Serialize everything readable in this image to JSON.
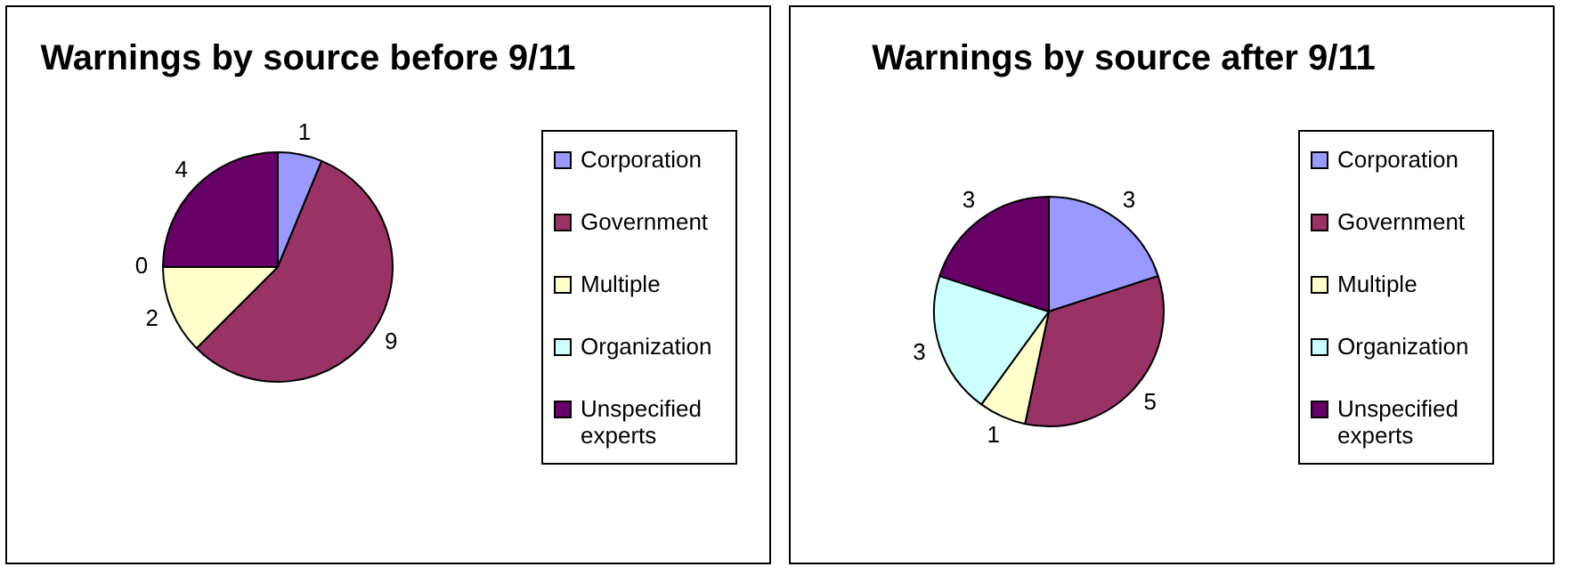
{
  "chart_data": [
    {
      "type": "pie",
      "title": "Warnings by source before 9/11",
      "categories": [
        "Corporation",
        "Government",
        "Multiple",
        "Organization",
        "Unspecified experts"
      ],
      "values": [
        1,
        9,
        2,
        0,
        4
      ],
      "colors": [
        "#9999ff",
        "#993366",
        "#ffffcc",
        "#ccffff",
        "#660066"
      ],
      "value_labels": [
        "1",
        "9",
        "2",
        "0",
        "4"
      ],
      "legend": "right"
    },
    {
      "type": "pie",
      "title": "Warnings by source after 9/11",
      "categories": [
        "Corporation",
        "Government",
        "Multiple",
        "Organization",
        "Unspecified experts"
      ],
      "values": [
        3,
        5,
        1,
        3,
        3
      ],
      "colors": [
        "#9999ff",
        "#993366",
        "#ffffcc",
        "#ccffff",
        "#660066"
      ],
      "value_labels": [
        "3",
        "5",
        "1",
        "3",
        "3"
      ],
      "legend": "right"
    }
  ]
}
